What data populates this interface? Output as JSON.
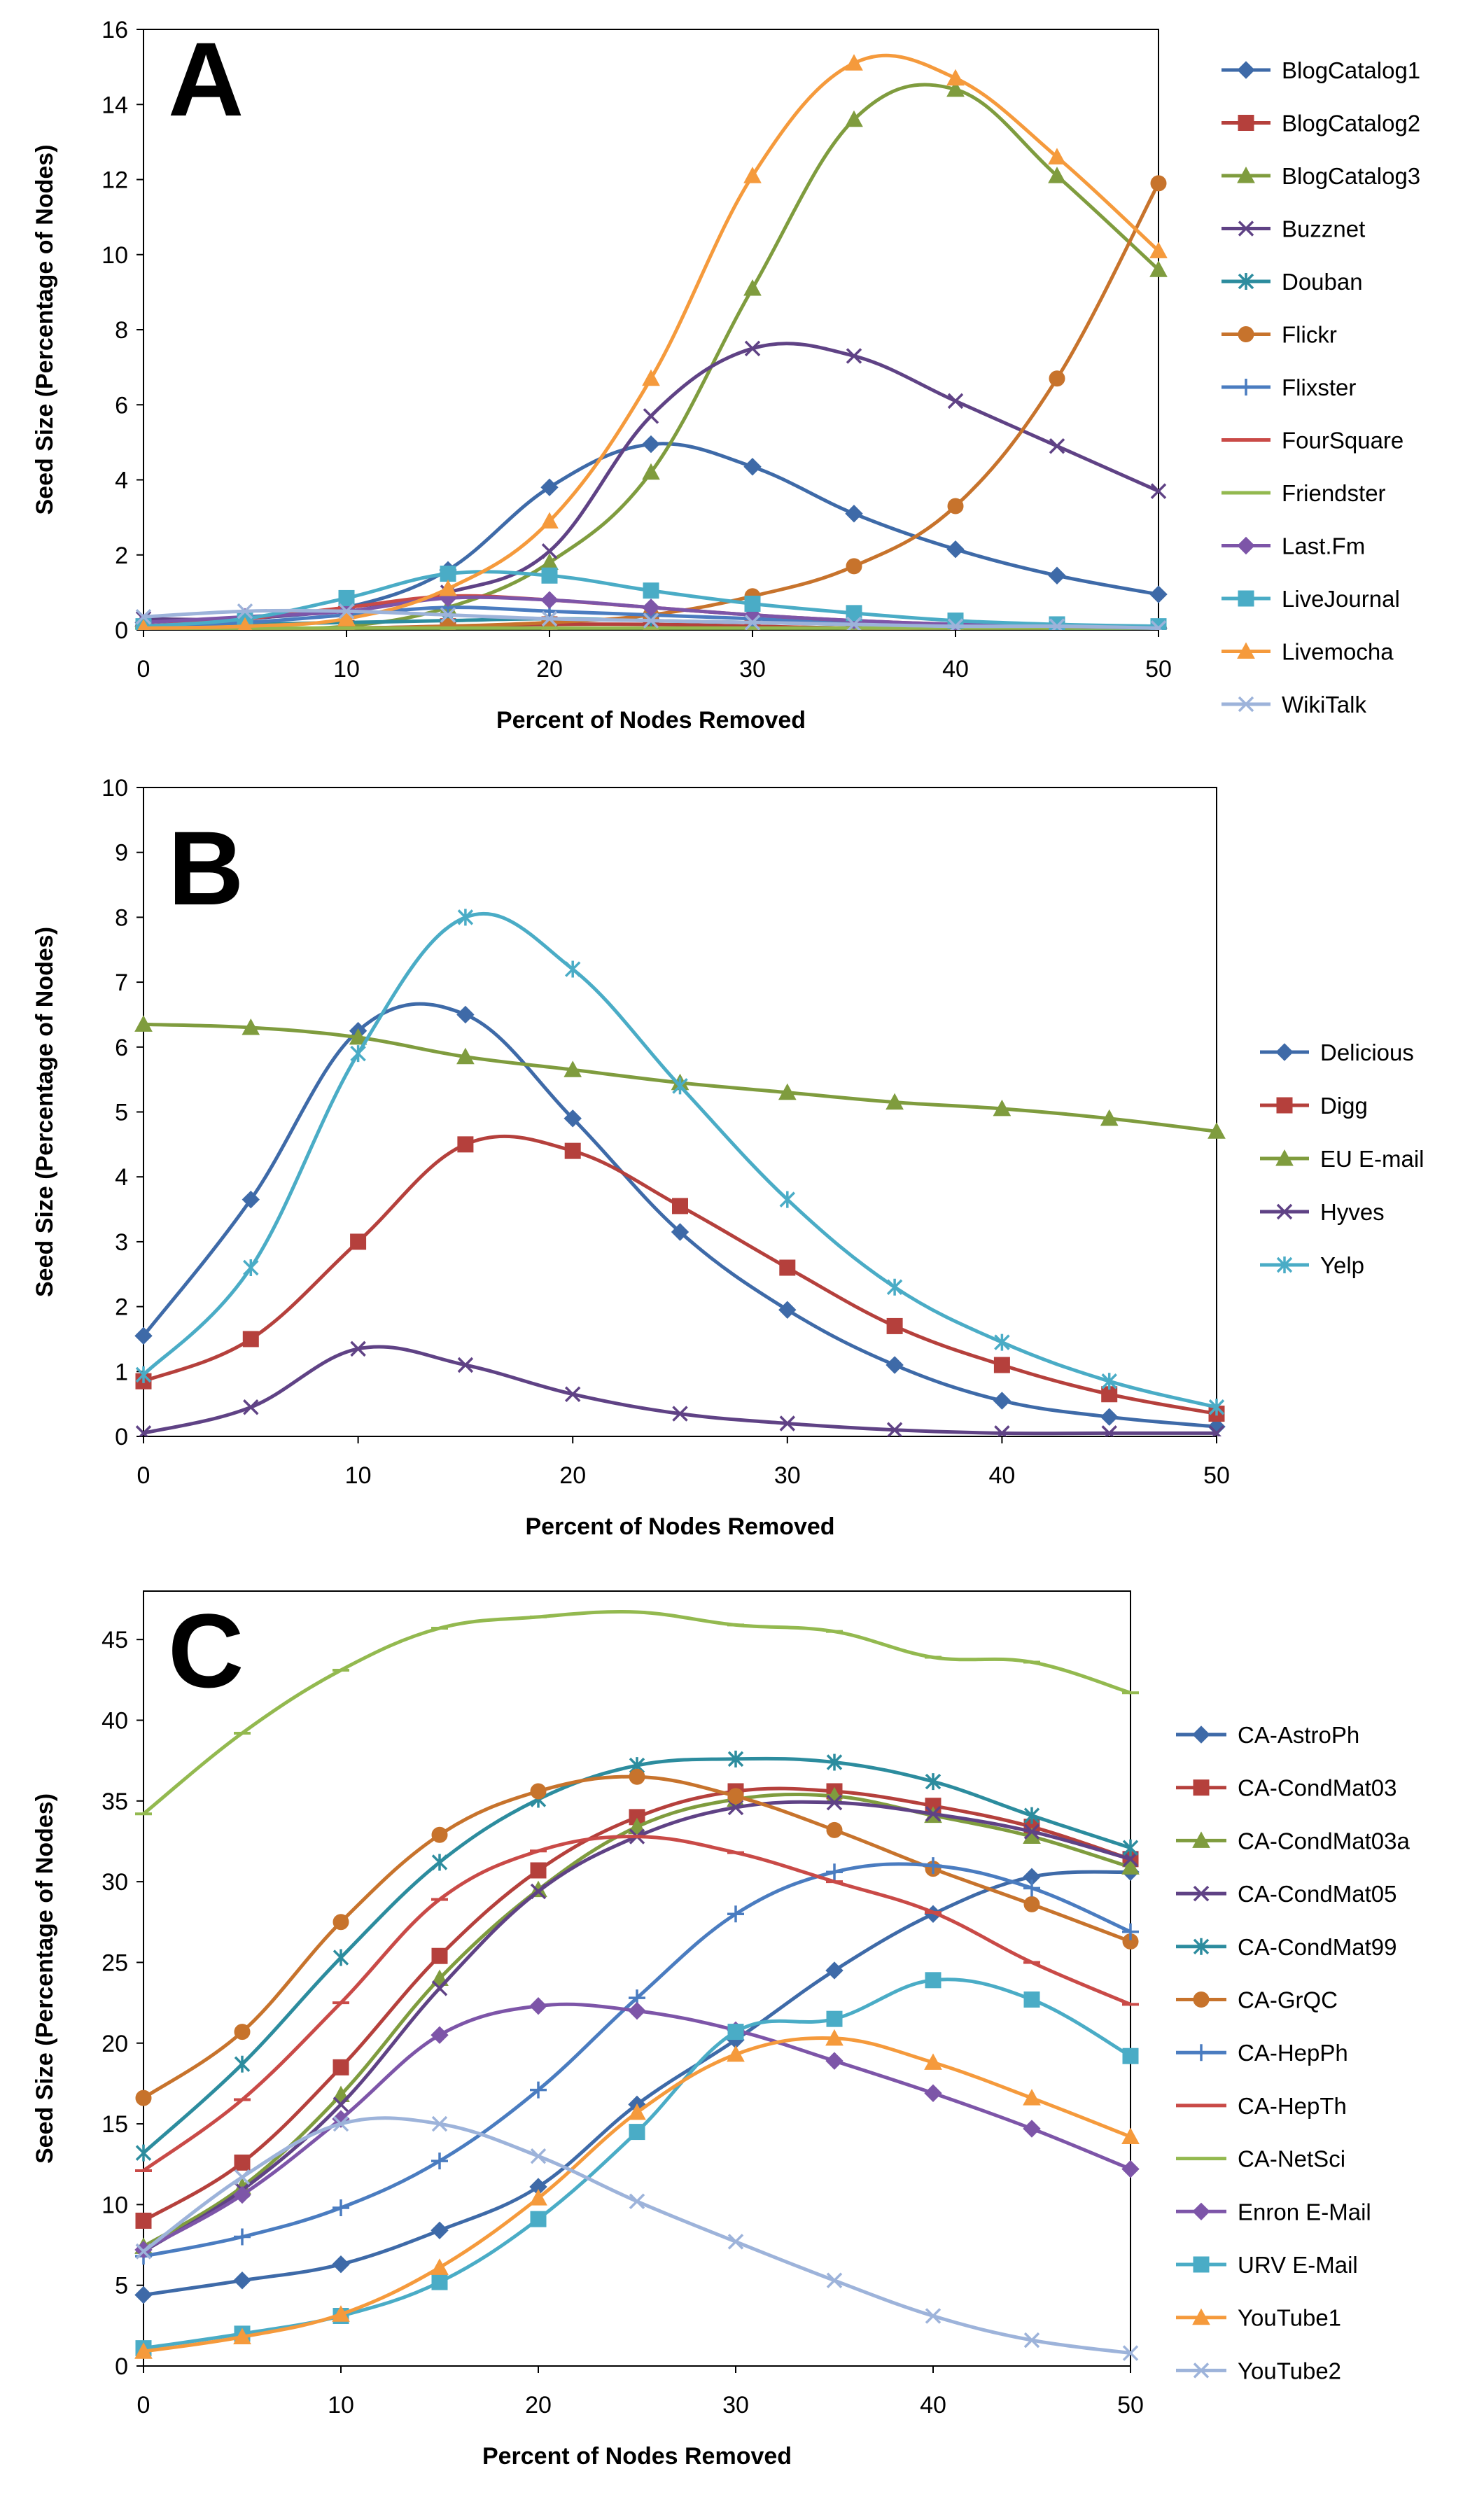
{
  "chart_data": [
    {
      "type": "line",
      "panel": "A",
      "xlabel": "Percent of Nodes Removed",
      "ylabel": "Seed Size (Percentage of Nodes)",
      "xlim": [
        0,
        50
      ],
      "ylim": [
        0,
        16
      ],
      "xticks": [
        0,
        10,
        20,
        30,
        40,
        50
      ],
      "yticks": [
        0,
        2,
        4,
        6,
        8,
        10,
        12,
        14,
        16
      ],
      "legend_position": "right",
      "x": [
        0,
        5,
        10,
        15,
        20,
        25,
        30,
        35,
        40,
        45,
        50
      ],
      "series": [
        {
          "name": "BlogCatalog1",
          "color": "#3E6AA8",
          "marker": "diamond",
          "values": [
            0.1,
            0.3,
            0.6,
            1.6,
            3.8,
            4.95,
            4.35,
            3.1,
            2.15,
            1.45,
            0.95
          ]
        },
        {
          "name": "BlogCatalog2",
          "color": "#B5403C",
          "marker": "square",
          "values": [
            0.05,
            0.05,
            0.05,
            0.1,
            0.15,
            0.15,
            0.1,
            0.05,
            0.05,
            0.05,
            0.05
          ]
        },
        {
          "name": "BlogCatalog3",
          "color": "#7F9C3E",
          "marker": "triangle",
          "values": [
            0.05,
            0.05,
            0.1,
            0.6,
            1.8,
            4.2,
            9.1,
            13.6,
            14.4,
            12.1,
            9.6
          ]
        },
        {
          "name": "Buzznet",
          "color": "#5F4285",
          "marker": "x",
          "values": [
            0.3,
            0.3,
            0.6,
            1.0,
            2.1,
            5.7,
            7.5,
            7.3,
            6.1,
            4.9,
            3.7
          ]
        },
        {
          "name": "Douban",
          "color": "#2C8C9E",
          "marker": "star",
          "values": [
            0.1,
            0.15,
            0.2,
            0.25,
            0.3,
            0.25,
            0.2,
            0.15,
            0.1,
            0.05,
            0.05
          ]
        },
        {
          "name": "Flickr",
          "color": "#C7732C",
          "marker": "circle",
          "values": [
            0.05,
            0.05,
            0.05,
            0.1,
            0.2,
            0.4,
            0.9,
            1.7,
            3.3,
            6.7,
            11.9
          ]
        },
        {
          "name": "Flixster",
          "color": "#4A7CC0",
          "marker": "plus",
          "values": [
            0.1,
            0.2,
            0.4,
            0.6,
            0.5,
            0.4,
            0.3,
            0.2,
            0.15,
            0.1,
            0.05
          ]
        },
        {
          "name": "FourSquare",
          "color": "#C94A47",
          "marker": "dash",
          "values": [
            0.1,
            0.3,
            0.6,
            0.9,
            0.8,
            0.6,
            0.4,
            0.25,
            0.15,
            0.1,
            0.05
          ]
        },
        {
          "name": "Friendster",
          "color": "#93B94F",
          "marker": "dash",
          "values": [
            0.05,
            0.05,
            0.05,
            0.05,
            0.05,
            0.05,
            0.05,
            0.05,
            0.05,
            0.05,
            0.05
          ]
        },
        {
          "name": "Last.Fm",
          "color": "#7D55A8",
          "marker": "diamond",
          "values": [
            0.2,
            0.35,
            0.5,
            0.85,
            0.8,
            0.6,
            0.4,
            0.25,
            0.15,
            0.1,
            0.05
          ]
        },
        {
          "name": "LiveJournal",
          "color": "#4AACC6",
          "marker": "square",
          "values": [
            0.1,
            0.3,
            0.85,
            1.5,
            1.45,
            1.05,
            0.7,
            0.45,
            0.25,
            0.15,
            0.1
          ]
        },
        {
          "name": "Livemocha",
          "color": "#F59A3C",
          "marker": "triangle",
          "values": [
            0.05,
            0.1,
            0.3,
            1.1,
            2.9,
            6.7,
            12.1,
            15.1,
            14.7,
            12.6,
            10.1
          ]
        },
        {
          "name": "WikiTalk",
          "color": "#9DB3DA",
          "marker": "x",
          "values": [
            0.35,
            0.5,
            0.5,
            0.4,
            0.3,
            0.25,
            0.2,
            0.15,
            0.1,
            0.1,
            0.05
          ]
        }
      ]
    },
    {
      "type": "line",
      "panel": "B",
      "xlabel": "Percent of Nodes Removed",
      "ylabel": "Seed Size (Percentage of Nodes)",
      "xlim": [
        0,
        50
      ],
      "ylim": [
        0,
        10
      ],
      "xticks": [
        0,
        10,
        20,
        30,
        40,
        50
      ],
      "yticks": [
        0,
        1,
        2,
        3,
        4,
        5,
        6,
        7,
        8,
        9,
        10
      ],
      "legend_position": "right",
      "x": [
        0,
        5,
        10,
        15,
        20,
        25,
        30,
        35,
        40,
        45,
        50
      ],
      "series": [
        {
          "name": "Delicious",
          "color": "#3E6AA8",
          "marker": "diamond",
          "values": [
            1.55,
            3.65,
            6.25,
            6.5,
            4.9,
            3.15,
            1.95,
            1.1,
            0.55,
            0.3,
            0.15
          ]
        },
        {
          "name": "Digg",
          "color": "#B5403C",
          "marker": "square",
          "values": [
            0.85,
            1.5,
            3.0,
            4.5,
            4.4,
            3.55,
            2.6,
            1.7,
            1.1,
            0.65,
            0.35
          ]
        },
        {
          "name": "EU E-mail",
          "color": "#7F9C3E",
          "marker": "triangle",
          "values": [
            6.35,
            6.3,
            6.15,
            5.85,
            5.65,
            5.45,
            5.3,
            5.15,
            5.05,
            4.9,
            4.7
          ]
        },
        {
          "name": "Hyves",
          "color": "#5F4285",
          "marker": "x",
          "values": [
            0.05,
            0.45,
            1.35,
            1.1,
            0.65,
            0.35,
            0.2,
            0.1,
            0.05,
            0.05,
            0.05
          ]
        },
        {
          "name": "Yelp",
          "color": "#4AACC6",
          "marker": "star",
          "values": [
            0.95,
            2.6,
            5.9,
            8.0,
            7.2,
            5.4,
            3.65,
            2.3,
            1.45,
            0.85,
            0.45
          ]
        }
      ]
    },
    {
      "type": "line",
      "panel": "C",
      "xlabel": "Percent of Nodes Removed",
      "ylabel": "Seed Size (Percentage of Nodes)",
      "xlim": [
        0,
        50
      ],
      "ylim": [
        0,
        48
      ],
      "xticks": [
        0,
        10,
        20,
        30,
        40,
        50
      ],
      "yticks": [
        0,
        5,
        10,
        15,
        20,
        25,
        30,
        35,
        40,
        45
      ],
      "legend_position": "right",
      "x": [
        0,
        5,
        10,
        15,
        20,
        25,
        30,
        35,
        40,
        45,
        50
      ],
      "series": [
        {
          "name": "CA-AstroPh",
          "color": "#3E6AA8",
          "marker": "diamond",
          "values": [
            4.4,
            5.3,
            6.3,
            8.4,
            11.1,
            16.2,
            20.2,
            24.5,
            28.0,
            30.3,
            30.6
          ]
        },
        {
          "name": "CA-CondMat03",
          "color": "#B5403C",
          "marker": "square",
          "values": [
            9.0,
            12.6,
            18.5,
            25.4,
            30.7,
            34.0,
            35.6,
            35.6,
            34.7,
            33.4,
            31.4
          ]
        },
        {
          "name": "CA-CondMat03a",
          "color": "#7F9C3E",
          "marker": "triangle",
          "values": [
            7.4,
            11.1,
            16.8,
            24.0,
            29.5,
            33.4,
            35.1,
            35.3,
            34.1,
            32.8,
            30.9
          ]
        },
        {
          "name": "CA-CondMat05",
          "color": "#5F4285",
          "marker": "x",
          "values": [
            7.1,
            10.9,
            16.2,
            23.4,
            29.4,
            32.8,
            34.6,
            34.9,
            34.2,
            33.1,
            31.4
          ]
        },
        {
          "name": "CA-CondMat99",
          "color": "#2C8C9E",
          "marker": "star",
          "values": [
            13.2,
            18.7,
            25.3,
            31.2,
            35.1,
            37.2,
            37.6,
            37.4,
            36.2,
            34.1,
            32.1
          ]
        },
        {
          "name": "CA-GrQC",
          "color": "#C7732C",
          "marker": "circle",
          "values": [
            16.6,
            20.7,
            27.5,
            32.9,
            35.6,
            36.5,
            35.3,
            33.2,
            30.8,
            28.6,
            26.3
          ]
        },
        {
          "name": "CA-HepPh",
          "color": "#4A7CC0",
          "marker": "plus",
          "values": [
            6.8,
            8.0,
            9.8,
            12.7,
            17.1,
            22.8,
            28.0,
            30.6,
            31.0,
            29.6,
            26.9
          ]
        },
        {
          "name": "CA-HepTh",
          "color": "#C94A47",
          "marker": "dash",
          "values": [
            12.1,
            16.5,
            22.5,
            28.9,
            31.9,
            32.8,
            31.8,
            30.0,
            28.1,
            25.0,
            22.4
          ]
        },
        {
          "name": "CA-NetSci",
          "color": "#93B94F",
          "marker": "dash",
          "values": [
            34.2,
            39.2,
            43.1,
            45.7,
            46.4,
            46.7,
            45.9,
            45.5,
            43.9,
            43.6,
            41.7
          ]
        },
        {
          "name": "Enron E-Mail",
          "color": "#7D55A8",
          "marker": "diamond",
          "values": [
            7.2,
            10.6,
            15.3,
            20.5,
            22.3,
            22.0,
            20.8,
            18.9,
            16.9,
            14.7,
            12.2
          ]
        },
        {
          "name": "URV E-Mail",
          "color": "#4AACC6",
          "marker": "square",
          "values": [
            1.1,
            2.0,
            3.1,
            5.2,
            9.1,
            14.5,
            20.7,
            21.5,
            23.9,
            22.7,
            19.2
          ]
        },
        {
          "name": "YouTube1",
          "color": "#F59A3C",
          "marker": "triangle",
          "values": [
            0.9,
            1.8,
            3.2,
            6.1,
            10.4,
            15.7,
            19.3,
            20.3,
            18.8,
            16.6,
            14.2
          ]
        },
        {
          "name": "YouTube2",
          "color": "#9DB3DA",
          "marker": "x",
          "values": [
            7.1,
            11.7,
            15.0,
            15.0,
            13.0,
            10.2,
            7.7,
            5.3,
            3.1,
            1.6,
            0.8
          ]
        }
      ]
    }
  ]
}
